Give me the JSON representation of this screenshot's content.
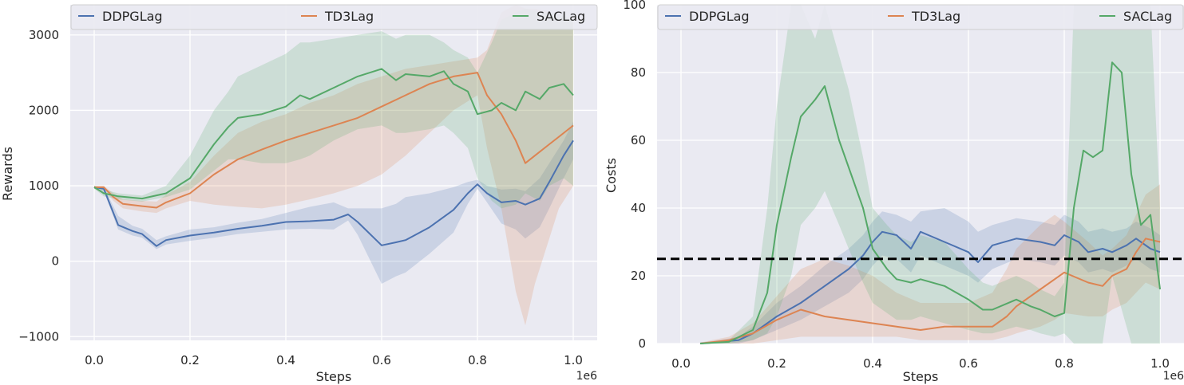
{
  "colors": {
    "DDPGLag": "#4c72b0",
    "TD3Lag": "#dd8452",
    "SACLag": "#55a868",
    "panel_bg": "#eaeaf2",
    "grid": "#ffffff",
    "threshold": "#000000"
  },
  "chart_data": [
    {
      "type": "line",
      "title": "",
      "xlabel": "Steps",
      "ylabel": "Rewards",
      "x_offset_label": "1e6",
      "xlim": [
        -0.05,
        1.05
      ],
      "ylim": [
        -1050,
        3400
      ],
      "xticks": [
        0.0,
        0.2,
        0.4,
        0.6,
        0.8,
        1.0
      ],
      "xtick_labels": [
        "0.0",
        "0.2",
        "0.4",
        "0.6",
        "0.8",
        "1.0"
      ],
      "yticks": [
        -1000,
        0,
        1000,
        2000,
        3000
      ],
      "ytick_labels": [
        "−1000",
        "0",
        "1000",
        "2000",
        "3000"
      ],
      "grid": true,
      "legend": "top",
      "series": [
        {
          "name": "DDPGLag",
          "x": [
            0.0,
            0.02,
            0.05,
            0.08,
            0.1,
            0.13,
            0.15,
            0.2,
            0.25,
            0.3,
            0.35,
            0.4,
            0.45,
            0.5,
            0.53,
            0.55,
            0.6,
            0.63,
            0.65,
            0.7,
            0.75,
            0.78,
            0.8,
            0.82,
            0.85,
            0.88,
            0.9,
            0.93,
            0.95,
            0.98,
            1.0
          ],
          "y": [
            980,
            960,
            480,
            400,
            360,
            200,
            280,
            340,
            380,
            430,
            470,
            520,
            530,
            550,
            620,
            520,
            210,
            250,
            280,
            450,
            680,
            900,
            1020,
            900,
            780,
            800,
            750,
            830,
            1050,
            1400,
            1600
          ],
          "upper": [
            1000,
            980,
            600,
            470,
            430,
            280,
            330,
            420,
            450,
            510,
            560,
            640,
            720,
            780,
            700,
            700,
            700,
            760,
            850,
            900,
            980,
            1050,
            1080,
            1000,
            950,
            960,
            930,
            1100,
            1300,
            1600,
            1850
          ],
          "lower": [
            960,
            930,
            420,
            340,
            310,
            160,
            220,
            270,
            310,
            360,
            390,
            420,
            430,
            420,
            540,
            350,
            -300,
            -200,
            -150,
            100,
            380,
            760,
            960,
            780,
            500,
            420,
            300,
            450,
            700,
            1100,
            1350
          ]
        },
        {
          "name": "TD3Lag",
          "x": [
            0.0,
            0.02,
            0.04,
            0.06,
            0.1,
            0.13,
            0.15,
            0.2,
            0.25,
            0.3,
            0.35,
            0.4,
            0.45,
            0.5,
            0.55,
            0.6,
            0.65,
            0.7,
            0.75,
            0.8,
            0.82,
            0.85,
            0.88,
            0.9,
            0.92,
            0.95,
            0.97,
            1.0
          ],
          "y": [
            980,
            980,
            850,
            760,
            730,
            710,
            780,
            900,
            1150,
            1350,
            1480,
            1600,
            1700,
            1800,
            1900,
            2050,
            2200,
            2350,
            2450,
            2500,
            2200,
            1950,
            1600,
            1300,
            1400,
            1550,
            1650,
            1800
          ],
          "upper": [
            1000,
            1000,
            900,
            820,
            800,
            790,
            880,
            1050,
            1400,
            1700,
            1850,
            1950,
            2100,
            2200,
            2350,
            2450,
            2550,
            2600,
            2650,
            2700,
            2800,
            3300,
            3400,
            3350,
            3350,
            3300,
            3200,
            3250
          ],
          "lower": [
            960,
            960,
            800,
            700,
            660,
            640,
            700,
            800,
            750,
            720,
            700,
            750,
            820,
            900,
            1000,
            1150,
            1400,
            1700,
            2000,
            2200,
            1500,
            700,
            -400,
            -850,
            -300,
            300,
            700,
            1000
          ]
        },
        {
          "name": "SACLag",
          "x": [
            0.0,
            0.02,
            0.05,
            0.1,
            0.15,
            0.2,
            0.25,
            0.28,
            0.3,
            0.35,
            0.4,
            0.43,
            0.45,
            0.5,
            0.55,
            0.6,
            0.63,
            0.65,
            0.7,
            0.73,
            0.75,
            0.78,
            0.8,
            0.83,
            0.85,
            0.88,
            0.9,
            0.93,
            0.95,
            0.98,
            1.0
          ],
          "y": [
            980,
            900,
            860,
            830,
            900,
            1100,
            1550,
            1780,
            1900,
            1950,
            2050,
            2200,
            2150,
            2300,
            2450,
            2550,
            2400,
            2480,
            2450,
            2520,
            2350,
            2250,
            1950,
            2000,
            2100,
            2000,
            2250,
            2150,
            2300,
            2350,
            2200
          ],
          "upper": [
            1000,
            950,
            900,
            870,
            1000,
            1400,
            2000,
            2250,
            2450,
            2600,
            2750,
            2900,
            2900,
            2950,
            3000,
            3050,
            2950,
            3000,
            3000,
            2900,
            2800,
            2700,
            2500,
            2900,
            3200,
            3300,
            3350,
            3300,
            3300,
            3250,
            3200
          ],
          "lower": [
            960,
            860,
            820,
            790,
            850,
            950,
            1200,
            1350,
            1350,
            1300,
            1300,
            1350,
            1400,
            1600,
            1750,
            1800,
            1700,
            1700,
            1750,
            1800,
            1700,
            1500,
            1100,
            800,
            700,
            750,
            900,
            800,
            1000,
            1100,
            1000
          ]
        }
      ]
    },
    {
      "type": "line",
      "title": "",
      "xlabel": "Steps",
      "ylabel": "Costs",
      "x_offset_label": "1e6",
      "xlim": [
        -0.05,
        1.05
      ],
      "ylim": [
        0,
        100
      ],
      "xticks": [
        0.0,
        0.2,
        0.4,
        0.6,
        0.8,
        1.0
      ],
      "xtick_labels": [
        "0.0",
        "0.2",
        "0.4",
        "0.6",
        "0.8",
        "1.0"
      ],
      "yticks": [
        0,
        20,
        40,
        60,
        80,
        100
      ],
      "ytick_labels": [
        "0",
        "20",
        "40",
        "60",
        "80",
        "100"
      ],
      "grid": true,
      "legend": "top",
      "threshold": 25,
      "series": [
        {
          "name": "DDPGLag",
          "x": [
            0.04,
            0.08,
            0.12,
            0.15,
            0.2,
            0.25,
            0.3,
            0.35,
            0.38,
            0.4,
            0.42,
            0.45,
            0.48,
            0.5,
            0.55,
            0.6,
            0.62,
            0.65,
            0.7,
            0.75,
            0.78,
            0.8,
            0.83,
            0.85,
            0.88,
            0.9,
            0.93,
            0.95,
            0.98,
            1.0
          ],
          "y": [
            0,
            0.5,
            1,
            3,
            8,
            12,
            17,
            22,
            26,
            30,
            33,
            32,
            28,
            33,
            30,
            27,
            24,
            29,
            31,
            30,
            29,
            32,
            30,
            27,
            28,
            27,
            29,
            31,
            28,
            27
          ],
          "upper": [
            0.3,
            1,
            2,
            5,
            12,
            17,
            23,
            28,
            32,
            36,
            39,
            38,
            36,
            39,
            40,
            36,
            33,
            35,
            37,
            36,
            35,
            38,
            36,
            33,
            34,
            33,
            34,
            36,
            34,
            32
          ],
          "lower": [
            0,
            0,
            0,
            1,
            4,
            7,
            11,
            15,
            19,
            23,
            26,
            25,
            21,
            26,
            23,
            20,
            18,
            22,
            25,
            24,
            23,
            26,
            24,
            21,
            22,
            21,
            23,
            25,
            22,
            21
          ]
        },
        {
          "name": "TD3Lag",
          "x": [
            0.04,
            0.1,
            0.15,
            0.2,
            0.25,
            0.3,
            0.35,
            0.4,
            0.45,
            0.5,
            0.55,
            0.6,
            0.65,
            0.68,
            0.7,
            0.75,
            0.78,
            0.8,
            0.85,
            0.88,
            0.9,
            0.93,
            0.95,
            0.97,
            1.0
          ],
          "y": [
            0,
            1,
            3,
            7,
            10,
            8,
            7,
            6,
            5,
            4,
            5,
            5,
            5,
            8,
            11,
            16,
            19,
            21,
            18,
            17,
            20,
            22,
            27,
            31,
            30
          ],
          "upper": [
            0.3,
            2,
            6,
            14,
            22,
            25,
            23,
            20,
            15,
            12,
            12,
            12,
            15,
            22,
            28,
            35,
            38,
            36,
            30,
            26,
            28,
            32,
            38,
            44,
            47
          ],
          "lower": [
            0,
            0,
            0,
            1,
            2,
            2,
            2,
            2,
            2,
            1,
            1,
            1,
            1,
            2,
            3,
            5,
            7,
            9,
            8,
            8,
            10,
            12,
            15,
            18,
            16
          ]
        },
        {
          "name": "SACLag",
          "x": [
            0.04,
            0.1,
            0.15,
            0.18,
            0.2,
            0.23,
            0.25,
            0.28,
            0.3,
            0.33,
            0.35,
            0.38,
            0.4,
            0.43,
            0.45,
            0.48,
            0.5,
            0.55,
            0.6,
            0.63,
            0.65,
            0.7,
            0.73,
            0.75,
            0.78,
            0.8,
            0.82,
            0.84,
            0.86,
            0.88,
            0.9,
            0.92,
            0.94,
            0.96,
            0.98,
            1.0
          ],
          "y": [
            0,
            0.5,
            4,
            15,
            35,
            55,
            67,
            72,
            76,
            60,
            52,
            40,
            28,
            22,
            19,
            18,
            19,
            17,
            13,
            10,
            10,
            13,
            11,
            10,
            8,
            9,
            40,
            57,
            55,
            57,
            83,
            80,
            50,
            35,
            38,
            16
          ],
          "upper": [
            0.3,
            1,
            8,
            40,
            70,
            100,
            100,
            90,
            100,
            85,
            75,
            55,
            40,
            35,
            32,
            30,
            32,
            30,
            22,
            18,
            17,
            20,
            18,
            16,
            14,
            18,
            100,
            100,
            100,
            100,
            100,
            100,
            100,
            100,
            100,
            40
          ],
          "lower": [
            0,
            0,
            1,
            3,
            8,
            20,
            35,
            40,
            45,
            35,
            28,
            18,
            12,
            9,
            7,
            7,
            8,
            6,
            4,
            3,
            3,
            5,
            4,
            3,
            2,
            3,
            0,
            0,
            0,
            0,
            20,
            10,
            0,
            0,
            0,
            0
          ]
        }
      ]
    }
  ]
}
